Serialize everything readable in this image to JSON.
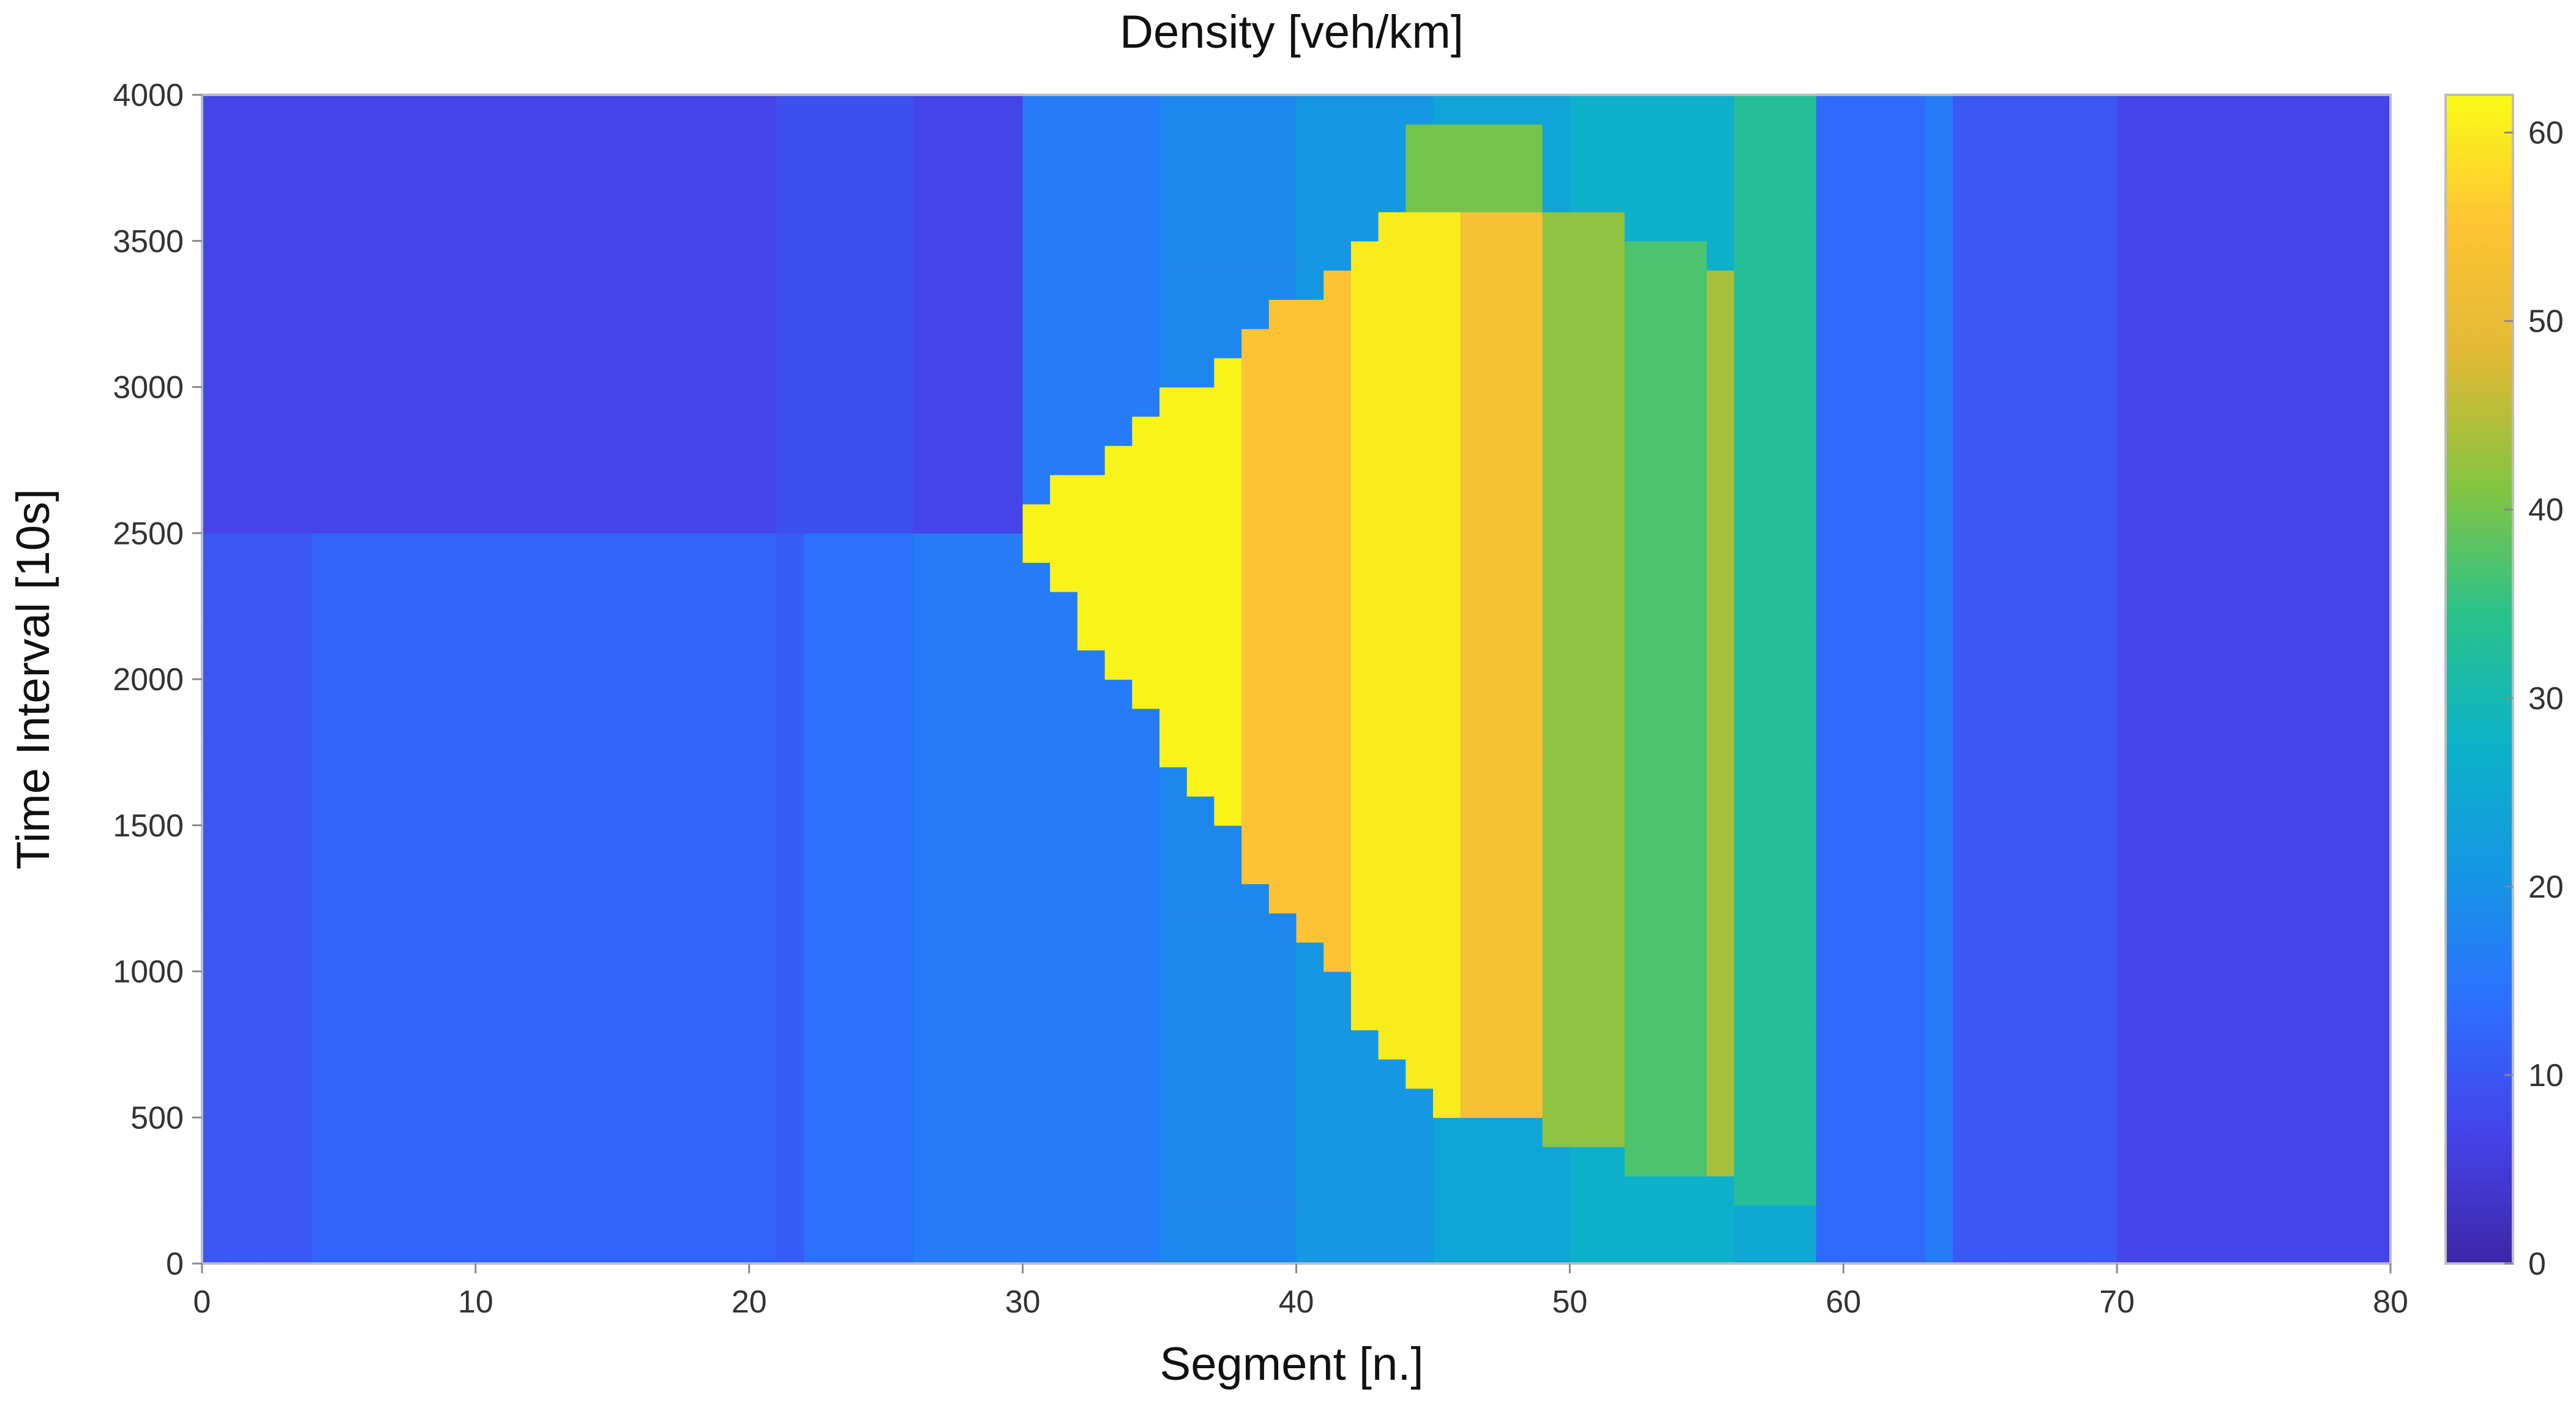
{
  "chart_data": {
    "type": "heatmap",
    "title": "Density [veh/km]",
    "xlabel": "Segment [n.]",
    "ylabel": "Time Interval [10s]",
    "xlim": [
      0,
      80
    ],
    "ylim": [
      0,
      4000
    ],
    "x_ticks": [
      "0",
      "10",
      "20",
      "30",
      "40",
      "50",
      "60",
      "70",
      "80"
    ],
    "y_ticks": [
      "0",
      "500",
      "1000",
      "1500",
      "2000",
      "2500",
      "3000",
      "3500",
      "4000"
    ],
    "colorbar": {
      "range": [
        0,
        62
      ],
      "ticks": [
        "0",
        "10",
        "20",
        "30",
        "40",
        "50",
        "60"
      ],
      "colormap": "parula",
      "colors": [
        "#3e26a8",
        "#4443e8",
        "#2d6ffe",
        "#1596e4",
        "#0cb2c8",
        "#2ac28a",
        "#86c440",
        "#e1b935",
        "#fdc334",
        "#f9fb15"
      ]
    },
    "segments": 80,
    "time_range": [
      0,
      4000
    ],
    "grid": false,
    "legend": "colorbar-right"
  }
}
